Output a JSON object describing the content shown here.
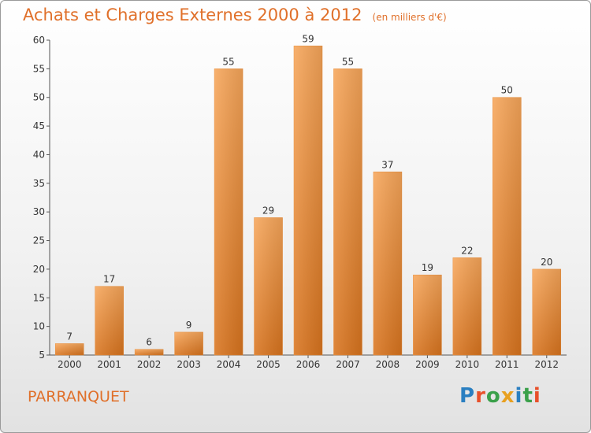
{
  "chart_data": {
    "type": "bar",
    "title": "Achats et Charges Externes 2000 à 2012",
    "unit": "(en milliers d'€)",
    "categories": [
      "2000",
      "2001",
      "2002",
      "2003",
      "2004",
      "2005",
      "2006",
      "2007",
      "2008",
      "2009",
      "2010",
      "2011",
      "2012"
    ],
    "values": [
      7,
      17,
      6,
      9,
      55,
      29,
      59,
      55,
      37,
      19,
      22,
      50,
      20
    ],
    "ylim": [
      5,
      60
    ],
    "yticks": [
      5,
      10,
      15,
      20,
      25,
      30,
      35,
      40,
      45,
      50,
      55,
      60
    ],
    "grid": false,
    "legend": "none",
    "bar_color": "#f0913a"
  },
  "footer": {
    "commune": "PARRANQUET",
    "logo_letters": [
      {
        "char": "P",
        "color": "#2a7fc1"
      },
      {
        "char": "r",
        "color": "#e8502a"
      },
      {
        "char": "o",
        "color": "#3aa04a"
      },
      {
        "char": "x",
        "color": "#e8a020"
      },
      {
        "char": "i",
        "color": "#2a7fc1"
      },
      {
        "char": "t",
        "color": "#3aa04a"
      },
      {
        "char": "i",
        "color": "#e8502a"
      }
    ]
  }
}
